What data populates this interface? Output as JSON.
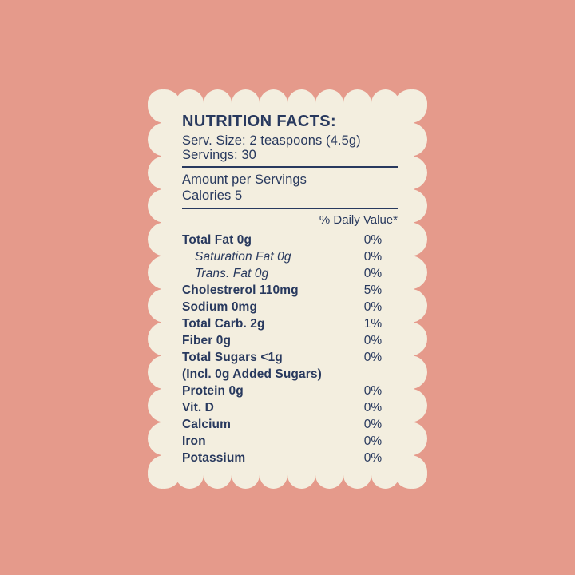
{
  "colors": {
    "background": "#e59a8b",
    "card": "#f3eedf",
    "ink": "#28395e"
  },
  "label": {
    "title": "NUTRITION FACTS:",
    "serving_size": "Serv. Size: 2 teaspoons (4.5g)",
    "servings": "Servings: 30",
    "amount_per_servings": "Amount per Servings",
    "calories": "Calories 5",
    "daily_value_header": "% Daily Value*",
    "rows": [
      {
        "label": "Total Fat 0g",
        "value": "0%",
        "style": "main"
      },
      {
        "label": "Saturation Fat 0g",
        "value": "0%",
        "style": "sub"
      },
      {
        "label": "Trans. Fat 0g",
        "value": "0%",
        "style": "sub"
      },
      {
        "label": "Cholestrerol 110mg",
        "value": "5%",
        "style": "main"
      },
      {
        "label": "Sodium 0mg",
        "value": "0%",
        "style": "main"
      },
      {
        "label": "Total Carb. 2g",
        "value": "1%",
        "style": "main"
      },
      {
        "label": "Fiber 0g",
        "value": "0%",
        "style": "main"
      },
      {
        "label": "Total Sugars <1g",
        "value": "0%",
        "style": "main"
      },
      {
        "label": "(Incl. 0g Added Sugars)",
        "value": "",
        "style": "main"
      },
      {
        "label": "Protein 0g",
        "value": "0%",
        "style": "main"
      },
      {
        "label": "Vit. D",
        "value": "0%",
        "style": "main"
      },
      {
        "label": "Calcium",
        "value": "0%",
        "style": "main"
      },
      {
        "label": "Iron",
        "value": "0%",
        "style": "main"
      },
      {
        "label": "Potassium",
        "value": "0%",
        "style": "main"
      }
    ]
  }
}
